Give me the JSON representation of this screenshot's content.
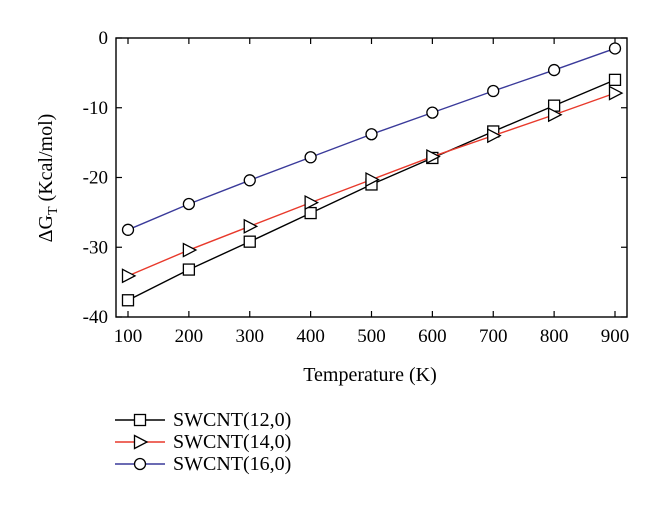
{
  "chart_data": {
    "type": "line",
    "xlabel": "Temperature (K)",
    "ylabel": {
      "main": "ΔG",
      "sub": "T",
      "rest": " (Kcal/mol)"
    },
    "xlim": [
      100,
      900
    ],
    "ylim": [
      -40,
      0
    ],
    "x_ticks": [
      100,
      200,
      300,
      400,
      500,
      600,
      700,
      800,
      900
    ],
    "y_ticks": [
      0,
      -10,
      -20,
      -30,
      -40
    ],
    "grid": false,
    "legend_position": "bottom-left, below plot",
    "x": [
      100,
      200,
      300,
      400,
      500,
      600,
      700,
      800,
      900
    ],
    "series": [
      {
        "name": "SWCNT(12,0)",
        "color": "#000000",
        "marker": "square",
        "values": [
          -37.6,
          -33.2,
          -29.2,
          -25.1,
          -21.0,
          -17.2,
          -13.4,
          -9.7,
          -6.0
        ]
      },
      {
        "name": "SWCNT(14,0)",
        "color": "#e8392b",
        "marker": "triangle-right",
        "values": [
          -34.1,
          -30.4,
          -27.0,
          -23.6,
          -20.3,
          -17.0,
          -14.0,
          -11.0,
          -7.9
        ]
      },
      {
        "name": "SWCNT(16,0)",
        "color": "#3a3a9a",
        "marker": "circle",
        "values": [
          -27.5,
          -23.8,
          -20.4,
          -17.1,
          -13.8,
          -10.7,
          -7.6,
          -4.6,
          -1.5
        ]
      }
    ]
  }
}
